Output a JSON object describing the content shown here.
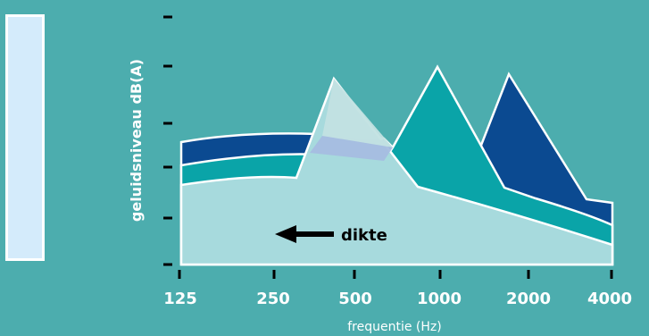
{
  "colors": {
    "background": "#4cadae",
    "light_fill": "#a7dadd",
    "teal_band": "#0aa4a8",
    "navy_band": "#0b4a91",
    "overlap_fill": "#a5bde0",
    "legend_panel": "#d4ebfb"
  },
  "y_axis": {
    "label": "geluidsniveau dB(A)"
  },
  "x_axis": {
    "label": "frequentie (Hz)",
    "ticks": [
      "125",
      "250",
      "500",
      "1000",
      "2000",
      "4000"
    ]
  },
  "annotation": {
    "text": "dikte"
  }
}
